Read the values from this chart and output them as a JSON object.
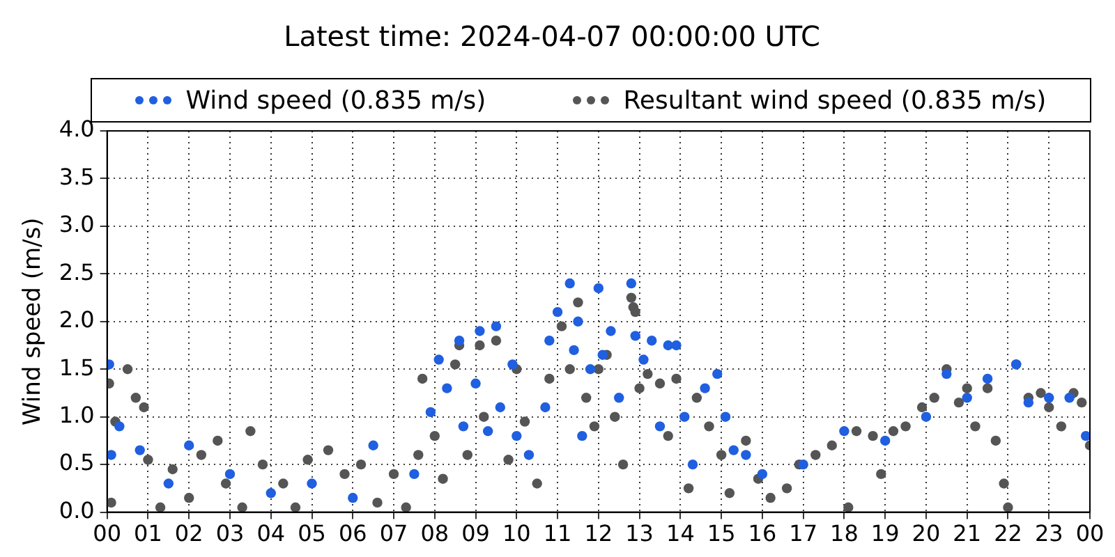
{
  "chart_data": {
    "type": "scatter",
    "title": "Latest time: 2024-04-07 00:00:00 UTC",
    "ylabel": "Wind speed (m/s)",
    "xlim": [
      0,
      24
    ],
    "xticks": [
      {
        "value": 0,
        "label": "00"
      },
      {
        "value": 1,
        "label": "01"
      },
      {
        "value": 2,
        "label": "02"
      },
      {
        "value": 3,
        "label": "03"
      },
      {
        "value": 4,
        "label": "04"
      },
      {
        "value": 5,
        "label": "05"
      },
      {
        "value": 6,
        "label": "06"
      },
      {
        "value": 7,
        "label": "07"
      },
      {
        "value": 8,
        "label": "08"
      },
      {
        "value": 9,
        "label": "09"
      },
      {
        "value": 10,
        "label": "10"
      },
      {
        "value": 11,
        "label": "11"
      },
      {
        "value": 12,
        "label": "12"
      },
      {
        "value": 13,
        "label": "13"
      },
      {
        "value": 14,
        "label": "14"
      },
      {
        "value": 15,
        "label": "15"
      },
      {
        "value": 16,
        "label": "16"
      },
      {
        "value": 17,
        "label": "17"
      },
      {
        "value": 18,
        "label": "18"
      },
      {
        "value": 19,
        "label": "19"
      },
      {
        "value": 20,
        "label": "20"
      },
      {
        "value": 21,
        "label": "21"
      },
      {
        "value": 22,
        "label": "22"
      },
      {
        "value": 23,
        "label": "23"
      },
      {
        "value": 24,
        "label": "00"
      }
    ],
    "ylim": [
      0,
      4
    ],
    "yticks": [
      {
        "value": 0,
        "label": "0.0"
      },
      {
        "value": 0.5,
        "label": "0.5"
      },
      {
        "value": 1,
        "label": "1.0"
      },
      {
        "value": 1.5,
        "label": "1.5"
      },
      {
        "value": 2,
        "label": "2.0"
      },
      {
        "value": 2.5,
        "label": "2.5"
      },
      {
        "value": 3,
        "label": "3.0"
      },
      {
        "value": 3.5,
        "label": "3.5"
      },
      {
        "value": 4,
        "label": "4.0"
      }
    ],
    "grid": true,
    "legend": "top",
    "marker": "circle",
    "series": [
      {
        "name": "Wind speed (0.835 m/s)",
        "color": "#1f5fe0",
        "x": [
          0.05,
          0.1,
          0.3,
          0.8,
          1.5,
          2.0,
          3.0,
          4.0,
          5.0,
          6.0,
          6.5,
          7.5,
          7.9,
          8.1,
          8.3,
          8.6,
          8.7,
          9.0,
          9.1,
          9.3,
          9.5,
          9.6,
          9.9,
          10.0,
          10.3,
          10.7,
          10.8,
          11.0,
          11.3,
          11.4,
          11.5,
          11.6,
          11.8,
          12.0,
          12.1,
          12.3,
          12.5,
          12.8,
          12.9,
          13.1,
          13.3,
          13.5,
          13.7,
          13.9,
          14.1,
          14.3,
          14.6,
          14.9,
          15.1,
          15.3,
          15.6,
          16.0,
          17.0,
          18.0,
          19.0,
          20.0,
          20.5,
          21.0,
          21.5,
          22.2,
          22.5,
          23.0,
          23.5,
          23.9
        ],
        "values": [
          1.55,
          0.6,
          0.9,
          0.65,
          0.3,
          0.7,
          0.4,
          0.2,
          0.3,
          0.15,
          0.7,
          0.4,
          1.05,
          1.6,
          1.3,
          1.8,
          0.9,
          1.35,
          1.9,
          0.85,
          1.95,
          1.1,
          1.55,
          0.8,
          0.6,
          1.1,
          1.8,
          2.1,
          2.4,
          1.7,
          2.0,
          0.8,
          1.5,
          2.35,
          1.65,
          1.9,
          1.2,
          2.4,
          1.85,
          1.6,
          1.8,
          0.9,
          1.75,
          1.75,
          1.0,
          0.5,
          1.3,
          1.45,
          1.0,
          0.65,
          0.6,
          0.4,
          0.5,
          0.85,
          0.75,
          1.0,
          1.45,
          1.2,
          1.4,
          1.55,
          1.15,
          1.2,
          1.2,
          0.8
        ]
      },
      {
        "name": "Resultant wind speed (0.835 m/s)",
        "color": "#555555",
        "x": [
          0.05,
          0.1,
          0.2,
          0.5,
          0.7,
          0.9,
          1.0,
          1.3,
          1.6,
          2.0,
          2.3,
          2.7,
          2.9,
          3.3,
          3.5,
          3.8,
          4.3,
          4.6,
          4.9,
          5.4,
          5.8,
          6.2,
          6.6,
          7.0,
          7.3,
          7.6,
          7.7,
          8.0,
          8.2,
          8.5,
          8.6,
          8.8,
          9.1,
          9.2,
          9.5,
          9.8,
          10.0,
          10.2,
          10.5,
          10.8,
          11.1,
          11.3,
          11.5,
          11.7,
          11.9,
          12.0,
          12.2,
          12.4,
          12.6,
          12.8,
          12.85,
          12.9,
          13.0,
          13.2,
          13.5,
          13.7,
          13.9,
          14.2,
          14.4,
          14.7,
          15.0,
          15.2,
          15.6,
          15.9,
          16.2,
          16.6,
          16.9,
          17.3,
          17.7,
          18.1,
          18.3,
          18.7,
          18.9,
          19.2,
          19.5,
          19.9,
          20.2,
          20.5,
          20.8,
          21.0,
          21.2,
          21.5,
          21.7,
          21.9,
          22.0,
          22.2,
          22.5,
          22.8,
          23.0,
          23.3,
          23.6,
          23.8,
          24.0
        ],
        "values": [
          1.35,
          0.1,
          0.95,
          1.5,
          1.2,
          1.1,
          0.55,
          0.05,
          0.45,
          0.15,
          0.6,
          0.75,
          0.3,
          0.05,
          0.85,
          0.5,
          0.3,
          0.05,
          0.55,
          0.65,
          0.4,
          0.5,
          0.1,
          0.4,
          0.05,
          0.6,
          1.4,
          0.8,
          0.35,
          1.55,
          1.75,
          0.6,
          1.75,
          1.0,
          1.8,
          0.55,
          1.5,
          0.95,
          0.3,
          1.4,
          1.95,
          1.5,
          2.2,
          1.2,
          0.9,
          1.5,
          1.65,
          1.0,
          0.5,
          2.25,
          2.15,
          2.1,
          1.3,
          1.45,
          1.35,
          0.8,
          1.4,
          0.25,
          1.2,
          0.9,
          0.6,
          0.2,
          0.75,
          0.35,
          0.15,
          0.25,
          0.5,
          0.6,
          0.7,
          0.05,
          0.85,
          0.8,
          0.4,
          0.85,
          0.9,
          1.1,
          1.2,
          1.5,
          1.15,
          1.3,
          0.9,
          1.3,
          0.75,
          0.3,
          0.05,
          1.55,
          1.2,
          1.25,
          1.1,
          0.9,
          1.25,
          1.15,
          0.7
        ]
      }
    ]
  }
}
